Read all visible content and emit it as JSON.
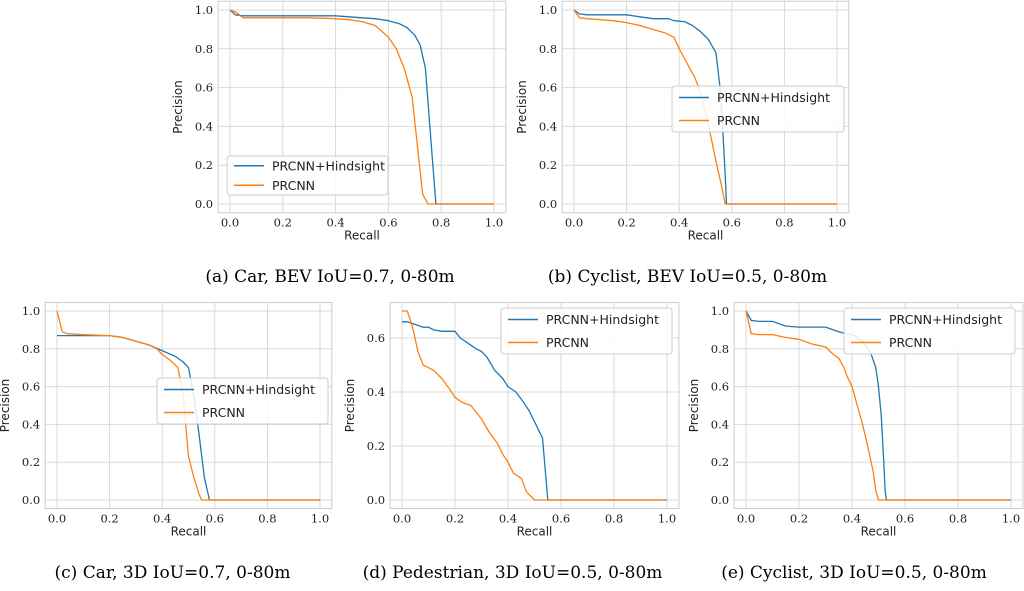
{
  "colors": {
    "hindsight": "#1f77b4",
    "prcnn": "#ff7f0e",
    "grid": "#d9d9d9",
    "frame": "#cccccc"
  },
  "chart_data": [
    {
      "type": "line",
      "caption": "(a) Car, BEV IoU=0.7, 0-80m",
      "xlabel": "Recall",
      "ylabel": "Precision",
      "xlim": [
        0,
        1
      ],
      "ylim": [
        0,
        1
      ],
      "xticks": [
        "0.0",
        "0.2",
        "0.4",
        "0.6",
        "0.8",
        "1.0"
      ],
      "yticks": [
        "0.0",
        "0.2",
        "0.4",
        "0.6",
        "0.8",
        "1.0"
      ],
      "grid": true,
      "legend": "bottom-left",
      "series": [
        {
          "name": "PRCNN+Hindsight",
          "x": [
            0,
            0.02,
            0.05,
            0.1,
            0.2,
            0.3,
            0.4,
            0.5,
            0.55,
            0.6,
            0.64,
            0.67,
            0.7,
            0.72,
            0.74,
            0.76,
            0.78,
            0.8,
            1.0
          ],
          "y": [
            1.0,
            0.975,
            0.97,
            0.97,
            0.97,
            0.97,
            0.97,
            0.96,
            0.955,
            0.945,
            0.93,
            0.91,
            0.87,
            0.82,
            0.7,
            0.35,
            0.0,
            0.0,
            0.0
          ]
        },
        {
          "name": "PRCNN",
          "x": [
            0,
            0.02,
            0.04,
            0.05,
            0.1,
            0.2,
            0.3,
            0.4,
            0.45,
            0.5,
            0.55,
            0.6,
            0.63,
            0.66,
            0.69,
            0.71,
            0.73,
            0.75,
            1.0
          ],
          "y": [
            1.0,
            0.99,
            0.97,
            0.96,
            0.96,
            0.96,
            0.96,
            0.955,
            0.95,
            0.94,
            0.92,
            0.86,
            0.8,
            0.7,
            0.55,
            0.3,
            0.05,
            0.0,
            0.0
          ]
        }
      ]
    },
    {
      "type": "line",
      "caption": "(b) Cyclist, BEV IoU=0.5, 0-80m",
      "xlabel": "Recall",
      "ylabel": "Precision",
      "xlim": [
        0,
        1
      ],
      "ylim": [
        0,
        1
      ],
      "xticks": [
        "0.0",
        "0.2",
        "0.4",
        "0.6",
        "0.8",
        "1.0"
      ],
      "yticks": [
        "0.0",
        "0.2",
        "0.4",
        "0.6",
        "0.8",
        "1.0"
      ],
      "grid": true,
      "legend": "center-right",
      "series": [
        {
          "name": "PRCNN+Hindsight",
          "x": [
            0,
            0.02,
            0.05,
            0.1,
            0.2,
            0.25,
            0.3,
            0.33,
            0.36,
            0.38,
            0.42,
            0.45,
            0.48,
            0.51,
            0.54,
            0.555,
            0.565,
            0.575,
            0.58,
            1.0
          ],
          "y": [
            1.0,
            0.98,
            0.975,
            0.975,
            0.975,
            0.965,
            0.955,
            0.955,
            0.955,
            0.945,
            0.94,
            0.92,
            0.89,
            0.85,
            0.78,
            0.6,
            0.4,
            0.15,
            0.0,
            0.0
          ]
        },
        {
          "name": "PRCNN",
          "x": [
            0,
            0.02,
            0.05,
            0.1,
            0.15,
            0.2,
            0.25,
            0.3,
            0.35,
            0.38,
            0.4,
            0.42,
            0.44,
            0.46,
            0.48,
            0.5,
            0.52,
            0.54,
            0.56,
            0.575,
            1.0
          ],
          "y": [
            1.0,
            0.96,
            0.955,
            0.95,
            0.945,
            0.935,
            0.92,
            0.9,
            0.88,
            0.86,
            0.8,
            0.75,
            0.7,
            0.65,
            0.58,
            0.47,
            0.35,
            0.22,
            0.1,
            0.0,
            0.0
          ]
        }
      ]
    },
    {
      "type": "line",
      "caption": "(c) Car, 3D IoU=0.7, 0-80m",
      "xlabel": "Recall",
      "ylabel": "Precision",
      "xlim": [
        0,
        1
      ],
      "ylim": [
        0,
        1
      ],
      "xticks": [
        "0.0",
        "0.2",
        "0.4",
        "0.6",
        "0.8",
        "1.0"
      ],
      "yticks": [
        "0.0",
        "0.2",
        "0.4",
        "0.6",
        "0.8",
        "1.0"
      ],
      "grid": true,
      "legend": "center-right",
      "series": [
        {
          "name": "PRCNN+Hindsight",
          "x": [
            0,
            0.05,
            0.1,
            0.15,
            0.2,
            0.25,
            0.3,
            0.35,
            0.4,
            0.45,
            0.48,
            0.5,
            0.52,
            0.54,
            0.56,
            0.58,
            0.6,
            1.0
          ],
          "y": [
            0.87,
            0.87,
            0.87,
            0.87,
            0.87,
            0.86,
            0.84,
            0.82,
            0.79,
            0.76,
            0.73,
            0.7,
            0.55,
            0.35,
            0.12,
            0.0,
            0.0,
            0.0
          ]
        },
        {
          "name": "PRCNN",
          "x": [
            0,
            0.02,
            0.04,
            0.1,
            0.2,
            0.25,
            0.3,
            0.35,
            0.38,
            0.4,
            0.43,
            0.46,
            0.48,
            0.5,
            0.52,
            0.54,
            0.55,
            1.0
          ],
          "y": [
            1.0,
            0.89,
            0.88,
            0.875,
            0.87,
            0.86,
            0.84,
            0.82,
            0.8,
            0.77,
            0.74,
            0.7,
            0.55,
            0.23,
            0.12,
            0.03,
            0.0,
            0.0
          ]
        }
      ]
    },
    {
      "type": "line",
      "caption": "(d) Pedestrian, 3D IoU=0.5, 0-80m",
      "xlabel": "Recall",
      "ylabel": "Precision",
      "xlim": [
        0,
        1
      ],
      "ylim": [
        0,
        0.7
      ],
      "xticks": [
        "0.0",
        "0.2",
        "0.4",
        "0.6",
        "0.8",
        "1.0"
      ],
      "yticks": [
        "0.0",
        "0.2",
        "0.4",
        "0.6"
      ],
      "grid": true,
      "legend": "top-right",
      "series": [
        {
          "name": "PRCNN+Hindsight",
          "x": [
            0,
            0.02,
            0.05,
            0.08,
            0.1,
            0.12,
            0.15,
            0.2,
            0.22,
            0.25,
            0.28,
            0.3,
            0.32,
            0.35,
            0.38,
            0.4,
            0.43,
            0.46,
            0.48,
            0.5,
            0.52,
            0.53,
            0.55,
            1.0
          ],
          "y": [
            0.66,
            0.66,
            0.65,
            0.64,
            0.64,
            0.63,
            0.625,
            0.625,
            0.6,
            0.58,
            0.56,
            0.55,
            0.53,
            0.48,
            0.45,
            0.42,
            0.4,
            0.36,
            0.33,
            0.29,
            0.25,
            0.23,
            0.0,
            0.0
          ]
        },
        {
          "name": "PRCNN",
          "x": [
            0,
            0.02,
            0.04,
            0.06,
            0.08,
            0.1,
            0.12,
            0.15,
            0.18,
            0.2,
            0.23,
            0.26,
            0.3,
            0.33,
            0.36,
            0.38,
            0.4,
            0.42,
            0.45,
            0.47,
            0.5,
            1.0
          ],
          "y": [
            0.7,
            0.7,
            0.64,
            0.55,
            0.5,
            0.49,
            0.48,
            0.45,
            0.41,
            0.38,
            0.36,
            0.35,
            0.3,
            0.25,
            0.21,
            0.17,
            0.14,
            0.1,
            0.08,
            0.03,
            0.0,
            0.0
          ]
        }
      ]
    },
    {
      "type": "line",
      "caption": "(e) Cyclist, 3D IoU=0.5, 0-80m",
      "xlabel": "Recall",
      "ylabel": "Precision",
      "xlim": [
        0,
        1
      ],
      "ylim": [
        0,
        1
      ],
      "xticks": [
        "0.0",
        "0.2",
        "0.4",
        "0.6",
        "0.8",
        "1.0"
      ],
      "yticks": [
        "0.0",
        "0.2",
        "0.4",
        "0.6",
        "0.8",
        "1.0"
      ],
      "grid": true,
      "legend": "top-right",
      "series": [
        {
          "name": "PRCNN+Hindsight",
          "x": [
            0,
            0.02,
            0.05,
            0.1,
            0.15,
            0.2,
            0.25,
            0.3,
            0.35,
            0.38,
            0.41,
            0.44,
            0.47,
            0.49,
            0.5,
            0.51,
            0.52,
            0.525,
            0.53,
            1.0
          ],
          "y": [
            1.0,
            0.95,
            0.945,
            0.945,
            0.92,
            0.915,
            0.915,
            0.915,
            0.89,
            0.88,
            0.87,
            0.84,
            0.78,
            0.7,
            0.6,
            0.45,
            0.2,
            0.05,
            0.0,
            0.0
          ]
        },
        {
          "name": "PRCNN",
          "x": [
            0,
            0.02,
            0.05,
            0.1,
            0.15,
            0.2,
            0.25,
            0.3,
            0.33,
            0.35,
            0.37,
            0.38,
            0.4,
            0.42,
            0.44,
            0.46,
            0.48,
            0.49,
            0.5,
            1.0
          ],
          "y": [
            1.0,
            0.88,
            0.875,
            0.875,
            0.86,
            0.85,
            0.825,
            0.81,
            0.77,
            0.75,
            0.7,
            0.66,
            0.6,
            0.5,
            0.4,
            0.28,
            0.15,
            0.05,
            0.0,
            0.0
          ]
        }
      ]
    }
  ]
}
